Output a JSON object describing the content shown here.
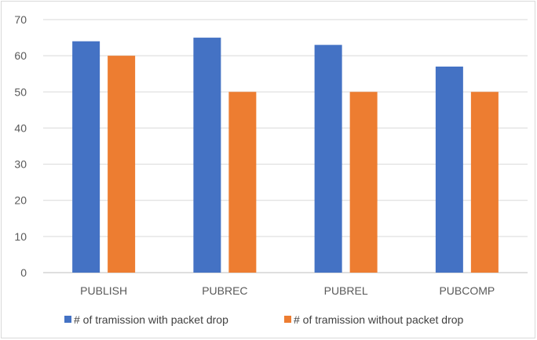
{
  "chart_data": {
    "type": "bar",
    "title": "",
    "xlabel": "",
    "ylabel": "",
    "categories": [
      "PUBLISH",
      "PUBREC",
      "PUBREL",
      "PUBCOMP"
    ],
    "series": [
      {
        "name": "# of tramission with packet drop",
        "color": "#4472c4",
        "values": [
          64,
          65,
          63,
          57
        ]
      },
      {
        "name": "# of tramission without packet drop",
        "color": "#ed7d31",
        "values": [
          60,
          50,
          50,
          50
        ]
      }
    ],
    "ylim": [
      0,
      70
    ],
    "yticks": [
      0,
      10,
      20,
      30,
      40,
      50,
      60,
      70
    ],
    "grid": true,
    "legend_position": "bottom"
  }
}
